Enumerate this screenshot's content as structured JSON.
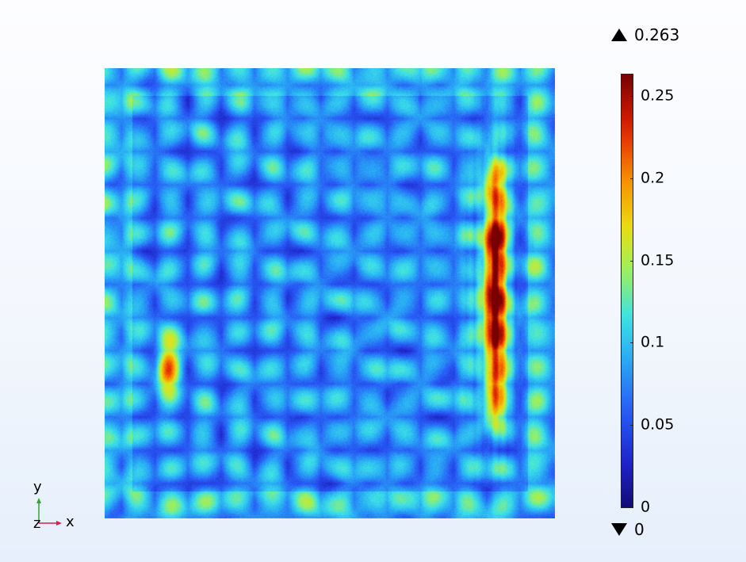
{
  "chart_data": {
    "type": "heatmap",
    "title": "",
    "xlabel": "",
    "ylabel": "",
    "colormap": "rainbow",
    "color_range": [
      0,
      0.263
    ],
    "colorbar_ticks": [
      0,
      0.05,
      0.1,
      0.15,
      0.2,
      0.25
    ],
    "colorbar_tick_labels": [
      "0",
      "0.05",
      "0.1",
      "0.15",
      "0.2",
      "0.25"
    ],
    "max_label": "0.263",
    "min_label": "0",
    "hotspots": [
      {
        "x": 0.865,
        "y": 0.38,
        "value": 0.26
      },
      {
        "x": 0.865,
        "y": 0.5,
        "value": 0.25
      },
      {
        "x": 0.865,
        "y": 0.6,
        "value": 0.24
      },
      {
        "x": 0.865,
        "y": 0.26,
        "value": 0.2
      },
      {
        "x": 0.865,
        "y": 0.72,
        "value": 0.2
      },
      {
        "x": 0.14,
        "y": 0.66,
        "value": 0.2
      }
    ]
  },
  "axes_triad": {
    "x_label": "x",
    "y_label": "y",
    "z_label": "z"
  },
  "colors": {
    "x_axis": "#d6204e",
    "y_axis": "#3aa03a",
    "z_axis": "#2d3fd0"
  }
}
